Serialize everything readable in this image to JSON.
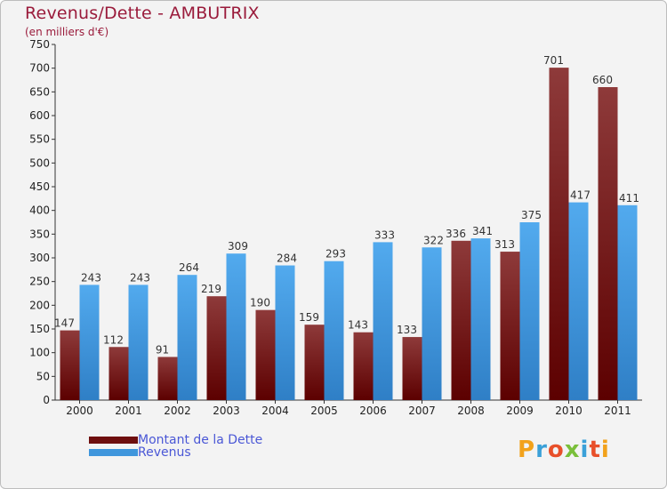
{
  "title": "Revenus/Dette - AMBUTRIX",
  "subtitle": "(en milliers d'€)",
  "legend": {
    "dette": "Montant de la Dette",
    "revenus": "Revenus"
  },
  "logo_text": "Proxiti",
  "colors": {
    "dette": "#7a1f1f",
    "revenus": "#3f96dc",
    "title": "#9a1b3b",
    "legend_text": "#4a57d6"
  },
  "chart_data": {
    "type": "bar",
    "categories": [
      "2000",
      "2001",
      "2002",
      "2003",
      "2004",
      "2005",
      "2006",
      "2007",
      "2008",
      "2009",
      "2010",
      "2011"
    ],
    "series": [
      {
        "name": "Montant de la Dette",
        "values": [
          147,
          112,
          91,
          219,
          190,
          159,
          143,
          133,
          336,
          313,
          701,
          660
        ]
      },
      {
        "name": "Revenus",
        "values": [
          243,
          243,
          264,
          309,
          284,
          293,
          333,
          322,
          341,
          375,
          417,
          411
        ]
      }
    ],
    "y_ticks": [
      0,
      50,
      100,
      150,
      200,
      250,
      300,
      350,
      400,
      450,
      500,
      550,
      600,
      650,
      700,
      750
    ],
    "ylim": [
      0,
      750
    ],
    "grid": false,
    "legend_position": "bottom-left"
  }
}
